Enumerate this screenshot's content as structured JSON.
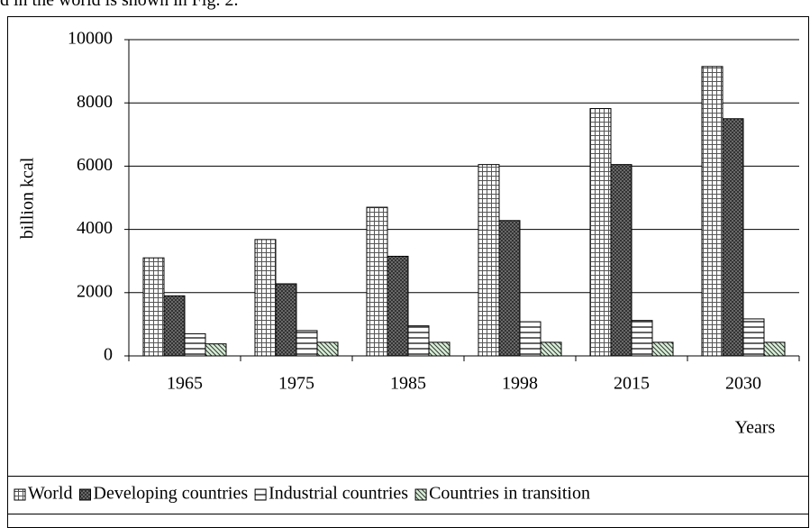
{
  "page_text": "d in the world is shown in Fig. 2.",
  "chart_data": {
    "type": "bar",
    "ylabel": "billion kcal",
    "xlabel": "Years",
    "categories": [
      "1965",
      "1975",
      "1985",
      "1998",
      "2015",
      "2030"
    ],
    "series": [
      {
        "name": "World",
        "color": "#ffffff",
        "pattern": "grid",
        "values": [
          3100,
          3680,
          4700,
          6050,
          7820,
          9150
        ]
      },
      {
        "name": "Developing countries",
        "color": "#333333",
        "pattern": "dots",
        "values": [
          1900,
          2280,
          3150,
          4280,
          6050,
          7500
        ]
      },
      {
        "name": "Industrial countries",
        "color": "#ffffff",
        "pattern": "hlines",
        "values": [
          700,
          800,
          950,
          1080,
          1120,
          1170
        ]
      },
      {
        "name": "Countries in transition",
        "color": "#d8f0d8",
        "pattern": "diag",
        "values": [
          380,
          430,
          430,
          430,
          430,
          430
        ]
      }
    ],
    "ylim": [
      0,
      10000
    ],
    "yticks": [
      0,
      2000,
      4000,
      6000,
      8000,
      10000
    ],
    "grid": true,
    "legend": "bottom"
  }
}
